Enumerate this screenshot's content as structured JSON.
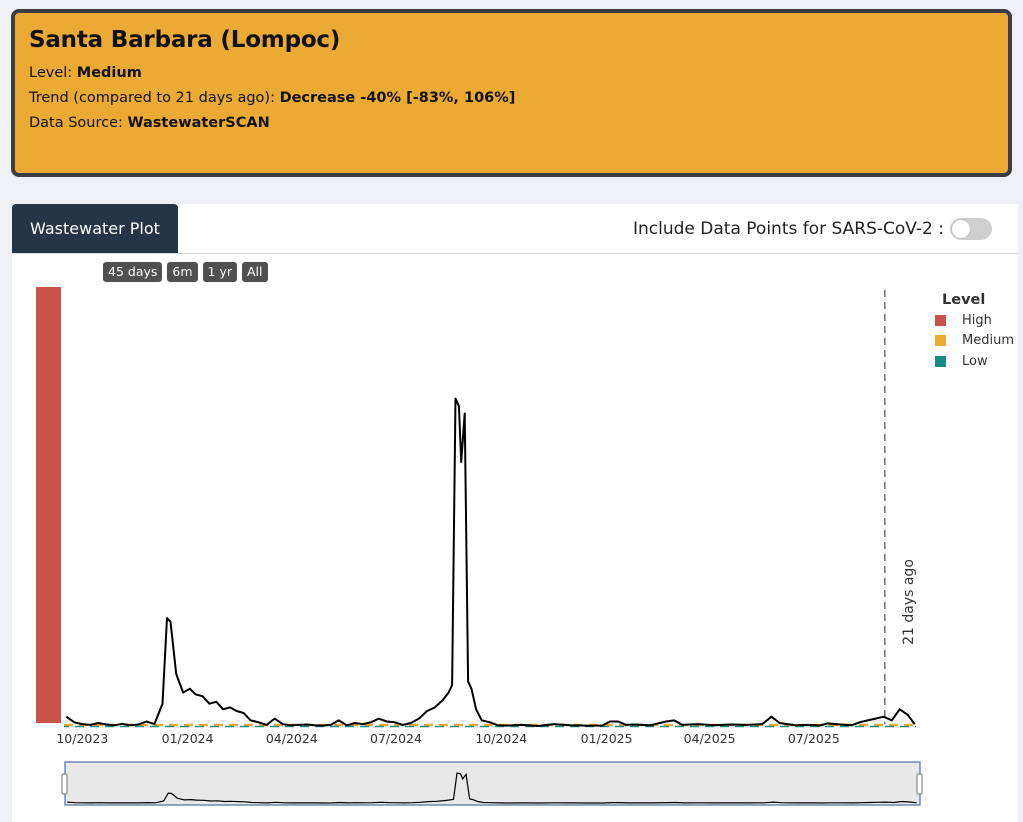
{
  "header": {
    "title": "Santa Barbara (Lompoc)",
    "level_label": "Level: ",
    "level_value": "Medium",
    "trend_label": "Trend (compared to 21 days ago): ",
    "trend_value": "Decrease -40% [-83%, 106%]",
    "source_label": "Data Source: ",
    "source_value": "WastewaterSCAN",
    "card_color": "#eaaa33"
  },
  "panel": {
    "tab_label": "Wastewater Plot",
    "toggle_label": "Include Data Points for SARS-CoV-2 :",
    "toggle_on": false,
    "range_buttons": [
      "45 days",
      "6m",
      "1 yr",
      "All"
    ]
  },
  "chart_data": {
    "type": "line",
    "x_tick_labels": [
      "10/2023",
      "01/2024",
      "04/2024",
      "07/2024",
      "10/2024",
      "01/2025",
      "04/2025",
      "07/2025"
    ],
    "x_range": [
      "2023-09-15",
      "2025-09-30"
    ],
    "y_range_relative": [
      0,
      1
    ],
    "legend": {
      "title": "Level",
      "position": "top-right",
      "items": [
        {
          "name": "High",
          "color": "#c9534a"
        },
        {
          "name": "Medium",
          "color": "#eaaa33"
        },
        {
          "name": "Low",
          "color": "#1a8a86"
        }
      ]
    },
    "vline": {
      "date": "2025-09-01",
      "label": "21 days ago"
    },
    "level_bar": {
      "level": "High",
      "color": "#c9534a"
    },
    "series": [
      {
        "color": "#000000",
        "points": [
          [
            "2023-09-17",
            0.025
          ],
          [
            "2023-09-24",
            0.01
          ],
          [
            "2023-10-01",
            0.005
          ],
          [
            "2023-10-08",
            0.003
          ],
          [
            "2023-10-15",
            0.008
          ],
          [
            "2023-10-22",
            0.004
          ],
          [
            "2023-10-29",
            0.002
          ],
          [
            "2023-11-05",
            0.006
          ],
          [
            "2023-11-12",
            0.002
          ],
          [
            "2023-11-19",
            0.004
          ],
          [
            "2023-11-26",
            0.012
          ],
          [
            "2023-12-03",
            0.005
          ],
          [
            "2023-12-10",
            0.06
          ],
          [
            "2023-12-14",
            0.29
          ],
          [
            "2023-12-17",
            0.28
          ],
          [
            "2023-12-22",
            0.14
          ],
          [
            "2023-12-28",
            0.09
          ],
          [
            "2024-01-03",
            0.1
          ],
          [
            "2024-01-08",
            0.085
          ],
          [
            "2024-01-14",
            0.08
          ],
          [
            "2024-01-20",
            0.06
          ],
          [
            "2024-01-26",
            0.065
          ],
          [
            "2024-02-01",
            0.045
          ],
          [
            "2024-02-07",
            0.05
          ],
          [
            "2024-02-13",
            0.04
          ],
          [
            "2024-02-19",
            0.035
          ],
          [
            "2024-02-25",
            0.015
          ],
          [
            "2024-03-03",
            0.01
          ],
          [
            "2024-03-10",
            0.003
          ],
          [
            "2024-03-17",
            0.02
          ],
          [
            "2024-03-24",
            0.005
          ],
          [
            "2024-03-31",
            0.002
          ],
          [
            "2024-04-07",
            0.003
          ],
          [
            "2024-04-14",
            0.004
          ],
          [
            "2024-04-21",
            0.002
          ],
          [
            "2024-04-28",
            0.001
          ],
          [
            "2024-05-05",
            0.003
          ],
          [
            "2024-05-12",
            0.015
          ],
          [
            "2024-05-19",
            0.002
          ],
          [
            "2024-05-26",
            0.008
          ],
          [
            "2024-06-02",
            0.005
          ],
          [
            "2024-06-09",
            0.01
          ],
          [
            "2024-06-16",
            0.02
          ],
          [
            "2024-06-23",
            0.012
          ],
          [
            "2024-06-30",
            0.01
          ],
          [
            "2024-07-07",
            0.003
          ],
          [
            "2024-07-14",
            0.008
          ],
          [
            "2024-07-21",
            0.02
          ],
          [
            "2024-07-28",
            0.04
          ],
          [
            "2024-08-04",
            0.05
          ],
          [
            "2024-08-11",
            0.07
          ],
          [
            "2024-08-16",
            0.09
          ],
          [
            "2024-08-19",
            0.11
          ],
          [
            "2024-08-22",
            0.88
          ],
          [
            "2024-08-25",
            0.86
          ],
          [
            "2024-08-27",
            0.71
          ],
          [
            "2024-08-30",
            0.84
          ],
          [
            "2024-09-02",
            0.12
          ],
          [
            "2024-09-05",
            0.1
          ],
          [
            "2024-09-09",
            0.045
          ],
          [
            "2024-09-14",
            0.015
          ],
          [
            "2024-09-21",
            0.01
          ],
          [
            "2024-09-28",
            0.002
          ],
          [
            "2024-10-05",
            0.001
          ],
          [
            "2024-10-19",
            0.003
          ],
          [
            "2024-11-02",
            0.0
          ],
          [
            "2024-11-16",
            0.005
          ],
          [
            "2024-11-30",
            0.002
          ],
          [
            "2024-12-14",
            0.001
          ],
          [
            "2024-12-28",
            0.001
          ],
          [
            "2025-01-04",
            0.012
          ],
          [
            "2025-01-11",
            0.012
          ],
          [
            "2025-01-18",
            0.003
          ],
          [
            "2025-01-25",
            0.004
          ],
          [
            "2025-02-01",
            0.003
          ],
          [
            "2025-02-08",
            0.002
          ],
          [
            "2025-02-22",
            0.012
          ],
          [
            "2025-03-01",
            0.015
          ],
          [
            "2025-03-08",
            0.003
          ],
          [
            "2025-03-22",
            0.005
          ],
          [
            "2025-04-05",
            0.002
          ],
          [
            "2025-04-19",
            0.004
          ],
          [
            "2025-05-03",
            0.003
          ],
          [
            "2025-05-17",
            0.005
          ],
          [
            "2025-05-25",
            0.025
          ],
          [
            "2025-06-01",
            0.008
          ],
          [
            "2025-06-15",
            0.002
          ],
          [
            "2025-06-29",
            0.003
          ],
          [
            "2025-07-06",
            0.001
          ],
          [
            "2025-07-13",
            0.007
          ],
          [
            "2025-07-20",
            0.005
          ],
          [
            "2025-08-03",
            0.002
          ],
          [
            "2025-08-10",
            0.01
          ],
          [
            "2025-08-17",
            0.015
          ],
          [
            "2025-08-24",
            0.02
          ],
          [
            "2025-08-31",
            0.025
          ],
          [
            "2025-09-07",
            0.015
          ],
          [
            "2025-09-14",
            0.045
          ],
          [
            "2025-09-21",
            0.03
          ],
          [
            "2025-09-27",
            0.005
          ]
        ]
      }
    ]
  }
}
